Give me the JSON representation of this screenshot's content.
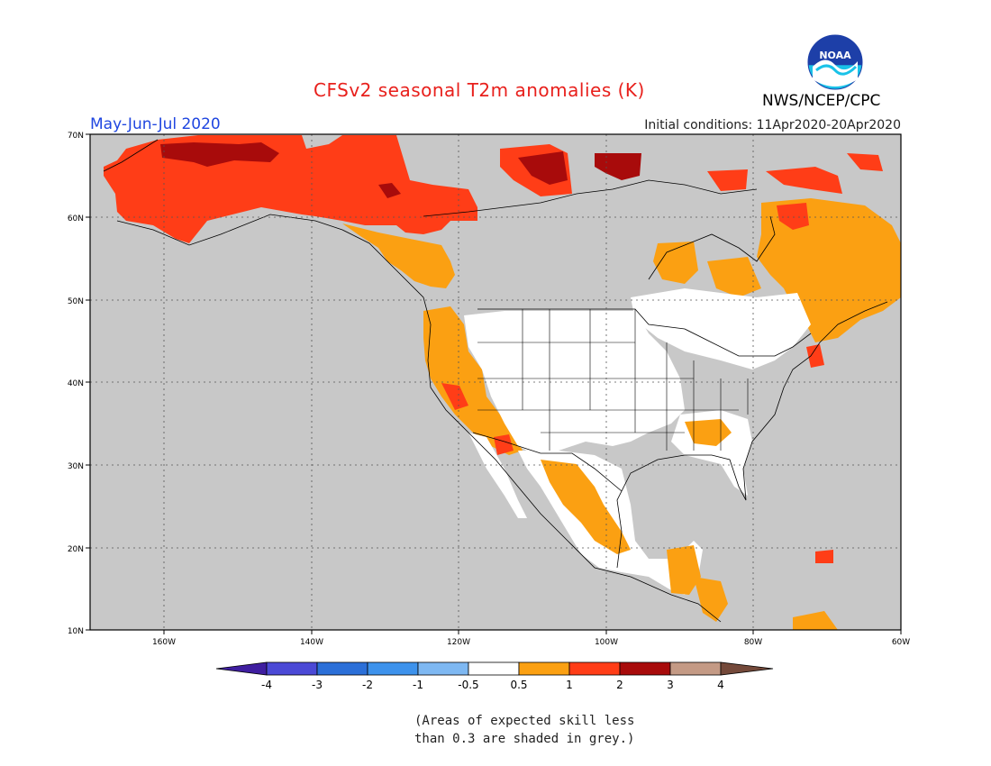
{
  "header": {
    "title": "CFSv2 seasonal T2m anomalies (K)",
    "season": "May-Jun-Jul 2020",
    "initial_conditions": "Initial conditions: 11Apr2020-20Apr2020",
    "agency": "NWS/NCEP/CPC",
    "logo_text": "NOAA"
  },
  "map": {
    "lon_labels": [
      "160W",
      "140W",
      "120W",
      "100W",
      "80W",
      "60W"
    ],
    "lat_labels": [
      "70N",
      "60N",
      "50N",
      "40N",
      "30N",
      "20N",
      "10N"
    ],
    "background_color": "#c8c8c8"
  },
  "colorbar": {
    "labels": [
      "-4",
      "-3",
      "-2",
      "-1",
      "-0.5",
      "0.5",
      "1",
      "2",
      "3",
      "4"
    ],
    "colors": [
      "#3f1ea0",
      "#4b49d6",
      "#2b6fd8",
      "#3d92ec",
      "#7eb8f2",
      "#ffffff",
      "#fba012",
      "#ff3d17",
      "#a80b0b",
      "#c49a85",
      "#74493a"
    ]
  },
  "note": {
    "line1": "(Areas of expected skill less",
    "line2": "than 0.3 are shaded in grey.)"
  },
  "legend_categories": {
    "orange": "#fba012",
    "red": "#ff3d17",
    "dark_red": "#a80b0b",
    "white": "#ffffff",
    "grey": "#c8c8c8"
  }
}
